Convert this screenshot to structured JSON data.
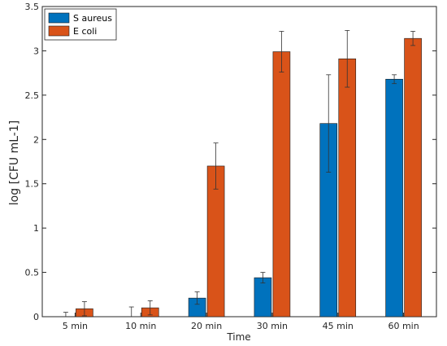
{
  "chart_data": {
    "type": "bar",
    "title": "",
    "xlabel": "Time",
    "ylabel": "log [CFU mL-1]",
    "categories": [
      "5 min",
      "10 min",
      "20 min",
      "30 min",
      "45 min",
      "60 min"
    ],
    "ylim": [
      0,
      3.5
    ],
    "yticks": [
      0,
      0.5,
      1,
      1.5,
      2,
      2.5,
      3,
      3.5
    ],
    "ytick_labels": [
      "0",
      "0.5",
      "1",
      "1.5",
      "2",
      "2.5",
      "3",
      "3.5"
    ],
    "grid": false,
    "legend_position": "top-left",
    "series": [
      {
        "name": "S aureus",
        "color": "#0072BD",
        "values": [
          0,
          0,
          0.21,
          0.44,
          2.18,
          2.68
        ],
        "errors": [
          0.05,
          0.11,
          0.07,
          0.06,
          0.55,
          0.05
        ]
      },
      {
        "name": "E coli",
        "color": "#D95319",
        "values": [
          0.09,
          0.1,
          1.7,
          2.99,
          2.91,
          3.14
        ],
        "errors": [
          0.08,
          0.08,
          0.26,
          0.23,
          0.32,
          0.08
        ]
      }
    ]
  }
}
